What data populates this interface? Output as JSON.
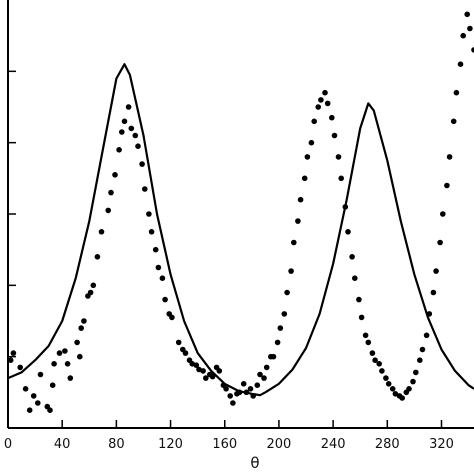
{
  "chart_data": {
    "type": "scatter",
    "xlabel": "θ",
    "ylabel": "",
    "title": "",
    "xlim": [
      0,
      344
    ],
    "ylim": [
      0,
      6
    ],
    "x_ticks": [
      0,
      40,
      80,
      120,
      160,
      200,
      240,
      280,
      320
    ],
    "x_tick_labels": [
      "0",
      "40",
      "80",
      "120",
      "160",
      "200",
      "240",
      "280",
      "320"
    ],
    "grid": false,
    "colors": {
      "axes": "#000000",
      "points": "#000000",
      "curve": "#000000"
    },
    "series": [
      {
        "kind": "points",
        "x": [
          2,
          4,
          9,
          13,
          16,
          19,
          22,
          24,
          29,
          31,
          33,
          34,
          38,
          42,
          44,
          46,
          51,
          53,
          54,
          56,
          59,
          61,
          63,
          66,
          69,
          74,
          76,
          79,
          82,
          84,
          86,
          89,
          91,
          94,
          96,
          99,
          101,
          104,
          106,
          109,
          111,
          114,
          116,
          119,
          121,
          126,
          129,
          131,
          134,
          136,
          139,
          141,
          144,
          146,
          149,
          151,
          154,
          156,
          159,
          161,
          164,
          166,
          169,
          171,
          174,
          176,
          179,
          181,
          184,
          186,
          189,
          191,
          194,
          196,
          199,
          201,
          204,
          206,
          209,
          211,
          214,
          216,
          219,
          221,
          224,
          226,
          229,
          231,
          234,
          236,
          239,
          241,
          244,
          246,
          249,
          251,
          254,
          256,
          259,
          261,
          264,
          266,
          269,
          271,
          274,
          276,
          279,
          281,
          284,
          286,
          289,
          291,
          294,
          296,
          299,
          301,
          304,
          306,
          309,
          311,
          314,
          316,
          319,
          321,
          324,
          326,
          329,
          331,
          334,
          336,
          339,
          341,
          344
        ],
        "y": [
          0.95,
          1.05,
          0.85,
          0.55,
          0.25,
          0.45,
          0.35,
          0.75,
          0.3,
          0.25,
          0.6,
          0.9,
          1.05,
          1.08,
          0.9,
          0.7,
          1.2,
          1.0,
          1.4,
          1.5,
          1.85,
          1.9,
          2.0,
          2.4,
          2.75,
          3.05,
          3.3,
          3.55,
          3.9,
          4.15,
          4.3,
          4.5,
          4.2,
          4.1,
          3.95,
          3.7,
          3.35,
          3.0,
          2.75,
          2.5,
          2.25,
          2.1,
          1.8,
          1.6,
          1.55,
          1.2,
          1.1,
          1.05,
          0.95,
          0.9,
          0.88,
          0.82,
          0.8,
          0.7,
          0.75,
          0.72,
          0.85,
          0.8,
          0.6,
          0.55,
          0.45,
          0.35,
          0.48,
          0.5,
          0.62,
          0.5,
          0.55,
          0.45,
          0.6,
          0.75,
          0.7,
          0.85,
          1.0,
          1.0,
          1.2,
          1.4,
          1.6,
          1.9,
          2.2,
          2.6,
          2.9,
          3.2,
          3.5,
          3.8,
          4.0,
          4.3,
          4.5,
          4.6,
          4.7,
          4.55,
          4.35,
          4.1,
          3.8,
          3.5,
          3.1,
          2.75,
          2.4,
          2.1,
          1.8,
          1.55,
          1.3,
          1.2,
          1.05,
          0.95,
          0.9,
          0.8,
          0.7,
          0.62,
          0.55,
          0.48,
          0.45,
          0.42,
          0.5,
          0.55,
          0.65,
          0.78,
          0.95,
          1.1,
          1.3,
          1.6,
          1.9,
          2.2,
          2.6,
          3.0,
          3.4,
          3.8,
          4.3,
          4.7,
          5.1,
          5.5,
          5.8,
          5.6,
          5.3
        ]
      },
      {
        "kind": "curve",
        "name": "",
        "x": [
          0,
          10,
          20,
          30,
          40,
          50,
          60,
          70,
          80,
          86,
          90,
          100,
          110,
          120,
          130,
          140,
          150,
          160,
          170,
          180,
          186,
          190,
          200,
          210,
          220,
          230,
          240,
          250,
          260,
          266,
          270,
          280,
          290,
          300,
          310,
          320,
          330,
          340,
          344
        ],
        "y": [
          0.7,
          0.78,
          0.95,
          1.15,
          1.5,
          2.1,
          2.9,
          3.9,
          4.9,
          5.1,
          4.95,
          4.1,
          3.0,
          2.15,
          1.5,
          1.05,
          0.8,
          0.62,
          0.52,
          0.48,
          0.46,
          0.5,
          0.62,
          0.82,
          1.12,
          1.6,
          2.3,
          3.2,
          4.2,
          4.55,
          4.45,
          3.75,
          2.9,
          2.15,
          1.55,
          1.1,
          0.8,
          0.6,
          0.55
        ]
      }
    ]
  }
}
